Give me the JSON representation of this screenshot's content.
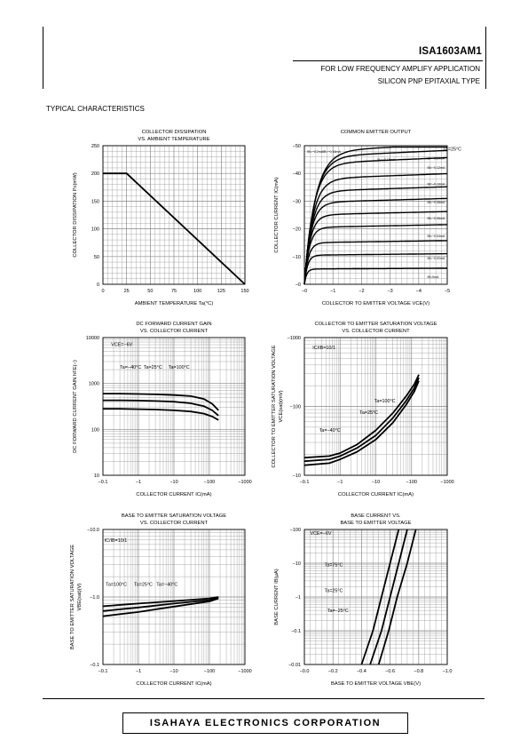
{
  "header": {
    "part_number": "ISA1603AM1",
    "application": "FOR LOW FREQUENCY AMPLIFY APPLICATION",
    "type": "SILICON PNP EPITAXIAL TYPE",
    "section": "TYPICAL CHARACTERISTICS"
  },
  "footer": {
    "company": "ISAHAYA ELECTRONICS CORPORATION"
  },
  "chart_data": [
    {
      "id": "c1",
      "type": "line",
      "title": [
        "COLLECTOR DISSIPATION",
        "VS. AMBIENT TEMPERATURE"
      ],
      "xlabel": "AMBIENT TEMPERATURE Ta(°C)",
      "ylabel": "COLLECTOR DISSIPATION Pc(mW)",
      "xticks": [
        "0",
        "25",
        "50",
        "75",
        "100",
        "125",
        "150"
      ],
      "yticks": [
        "0",
        "50",
        "100",
        "150",
        "200",
        "250"
      ],
      "xlim": [
        0,
        150
      ],
      "ylim": [
        0,
        250
      ],
      "series": [
        {
          "values": [
            [
              0,
              200
            ],
            [
              25,
              200
            ],
            [
              150,
              0
            ]
          ]
        }
      ],
      "annotations": []
    },
    {
      "id": "c2",
      "type": "line",
      "title": [
        "COMMON EMITTER OUTPUT"
      ],
      "xlabel": "COLLECTOR TO EMITTER VOLTAGE VCE(V)",
      "ylabel": "COLLECTOR CURRENT IC(mA)",
      "xticks": [
        "−0",
        "−1",
        "−2",
        "−3",
        "−4",
        "−5"
      ],
      "yticks": [
        "−0",
        "−10",
        "−20",
        "−30",
        "−40",
        "−50"
      ],
      "xlim": [
        0,
        5
      ],
      "ylim": [
        0,
        50
      ],
      "sat_levels": [
        5.5,
        10.5,
        15,
        20.5,
        25,
        29.5,
        33.5,
        38,
        43.5,
        46,
        48
      ],
      "annotations": [
        {
          "text": "Ta=25°C",
          "x": 4.85,
          "y": 48.2
        },
        {
          "text": "IB=−0.2mA",
          "x": 0.1,
          "y": 47.5
        },
        {
          "text": "IB=−0.16mA",
          "x": 0.65,
          "y": 47.5
        },
        {
          "text": "IB=−0.15mA",
          "x": 2.55,
          "y": 44.5
        },
        {
          "text": "IB=−0.14mA",
          "x": 4.3,
          "y": 45.1
        },
        {
          "text": "IB=−0.12mA",
          "x": 4.3,
          "y": 41.6
        },
        {
          "text": "IB=−0.10mA",
          "x": 4.3,
          "y": 35.8
        },
        {
          "text": "IB=−0.08mA",
          "x": 4.3,
          "y": 29.2
        },
        {
          "text": "IB=−0.06mA",
          "x": 4.3,
          "y": 23.4
        },
        {
          "text": "IB=−0.04mA",
          "x": 4.3,
          "y": 17.0
        },
        {
          "text": "IB=−0.02mA",
          "x": 4.3,
          "y": 9.0
        },
        {
          "text": "IB=0mA",
          "x": 4.3,
          "y": 2.2
        }
      ]
    },
    {
      "id": "c3",
      "type": "line",
      "title": [
        "DC FORWARD CURRENT GAIN",
        "VS. COLLECTOR CURRENT"
      ],
      "xlabel": "COLLECTOR CURRENT IC(mA)",
      "ylabel": "DC FORWARD CURRENT GAIN hFE(−)",
      "xticks": [
        "−0.1",
        "−1",
        "−10",
        "−100",
        "−1000"
      ],
      "yticks": [
        "10",
        "100",
        "1000",
        "10000"
      ],
      "xlim": [
        0.1,
        1000
      ],
      "ylim": [
        10,
        10000
      ],
      "xlog": true,
      "ylog": true,
      "series": [
        {
          "values": [
            [
              0.1,
              600
            ],
            [
              0.3,
              600
            ],
            [
              1,
              590
            ],
            [
              3,
              580
            ],
            [
              10,
              560
            ],
            [
              30,
              530
            ],
            [
              70,
              460
            ],
            [
              120,
              360
            ],
            [
              180,
              260
            ]
          ]
        },
        {
          "values": [
            [
              0.1,
              430
            ],
            [
              0.3,
              430
            ],
            [
              1,
              425
            ],
            [
              3,
              415
            ],
            [
              10,
              400
            ],
            [
              30,
              370
            ],
            [
              70,
              320
            ],
            [
              120,
              260
            ],
            [
              180,
              200
            ]
          ]
        },
        {
          "values": [
            [
              0.1,
              280
            ],
            [
              0.3,
              280
            ],
            [
              1,
              275
            ],
            [
              3,
              270
            ],
            [
              10,
              260
            ],
            [
              30,
              245
            ],
            [
              70,
              220
            ],
            [
              120,
              190
            ],
            [
              180,
              160
            ]
          ]
        }
      ],
      "annotations": [
        {
          "text": "VCE=−6V",
          "x": 0.17,
          "y": 6500
        },
        {
          "text": "Ta=−40°C",
          "x": 0.3,
          "y": 2100
        },
        {
          "text": "Ta=25°C",
          "x": 1.4,
          "y": 2100
        },
        {
          "text": "Ta=100°C",
          "x": 7,
          "y": 2100
        }
      ]
    },
    {
      "id": "c4",
      "type": "line",
      "title": [
        "COLLECTOR TO EMITTER SATURATION VOLTAGE",
        "VS. COLLECTOR CURRENT"
      ],
      "xlabel": "COLLECTOR CURRENT IC(mA)",
      "ylabel": [
        "COLLECTOR TO EMITTER SATURATION VOLTAGE",
        "VCE(sat)(mV)"
      ],
      "xticks": [
        "−0.1",
        "−1",
        "−10",
        "−100",
        "−1000"
      ],
      "yticks": [
        "−10",
        "−100",
        "−1000"
      ],
      "xlim": [
        0.1,
        1000
      ],
      "ylim": [
        10,
        1000
      ],
      "xlog": true,
      "ylog": true,
      "series": [
        {
          "values": [
            [
              0.1,
              18
            ],
            [
              0.5,
              19
            ],
            [
              1,
              21
            ],
            [
              3,
              28
            ],
            [
              10,
              45
            ],
            [
              30,
              80
            ],
            [
              70,
              140
            ],
            [
              120,
              210
            ],
            [
              160,
              290
            ]
          ]
        },
        {
          "values": [
            [
              0.1,
              16
            ],
            [
              0.5,
              17
            ],
            [
              1,
              19
            ],
            [
              3,
              25
            ],
            [
              10,
              38
            ],
            [
              30,
              68
            ],
            [
              70,
              120
            ],
            [
              120,
              185
            ],
            [
              160,
              260
            ]
          ]
        },
        {
          "values": [
            [
              0.1,
              14
            ],
            [
              0.5,
              15
            ],
            [
              1,
              17
            ],
            [
              3,
              22
            ],
            [
              10,
              33
            ],
            [
              30,
              58
            ],
            [
              70,
              105
            ],
            [
              120,
              165
            ],
            [
              160,
              235
            ]
          ]
        }
      ],
      "annotations": [
        {
          "text": "IC/IB=10/1",
          "x": 0.17,
          "y": 680
        },
        {
          "text": "Ta=100°C",
          "x": 9,
          "y": 115
        },
        {
          "text": "Ta=25°C",
          "x": 3.5,
          "y": 78
        },
        {
          "text": "Ta=−40°C",
          "x": 0.26,
          "y": 43
        }
      ]
    },
    {
      "id": "c5",
      "type": "line",
      "title": [
        "BASE TO EMITTER SATURATION VOLTAGE",
        "VS. COLLECTOR CURRENT"
      ],
      "xlabel": "COLLECTOR CURRENT IC(mA)",
      "ylabel": [
        "BASE TO EMITTER SATURATION VOLTAGE",
        "VBE(sat)(V)"
      ],
      "xticks": [
        "−0.1",
        "−1",
        "−10",
        "−100",
        "−1000"
      ],
      "yticks": [
        "−0.1",
        "−1.0",
        "−10.0"
      ],
      "xlim": [
        0.1,
        1000
      ],
      "ylim": [
        0.1,
        10
      ],
      "xlog": true,
      "ylog": true,
      "series": [
        {
          "values": [
            [
              0.1,
              0.73
            ],
            [
              1,
              0.8
            ],
            [
              10,
              0.87
            ],
            [
              100,
              0.95
            ],
            [
              180,
              1.0
            ]
          ]
        },
        {
          "values": [
            [
              0.1,
              0.62
            ],
            [
              1,
              0.7
            ],
            [
              10,
              0.8
            ],
            [
              100,
              0.9
            ],
            [
              180,
              0.97
            ]
          ]
        },
        {
          "values": [
            [
              0.1,
              0.52
            ],
            [
              1,
              0.6
            ],
            [
              10,
              0.72
            ],
            [
              100,
              0.86
            ],
            [
              180,
              0.95
            ]
          ]
        }
      ],
      "annotations": [
        {
          "text": "IC/IB=10/1",
          "x": 0.11,
          "y": 6.5
        },
        {
          "text": "Ta=100°C",
          "x": 0.12,
          "y": 1.45
        },
        {
          "text": "Ta=25°C",
          "x": 0.75,
          "y": 1.45
        },
        {
          "text": "Ta=−40°C",
          "x": 3.2,
          "y": 1.45
        }
      ]
    },
    {
      "id": "c6",
      "type": "line",
      "title": [
        "BASE CURRENT VS.",
        "BASE TO EMITTER VOLTAGE"
      ],
      "xlabel": "BASE TO EMITTER VOLTAGE VBE(V)",
      "ylabel": "BASE CURRENT IB(μA)",
      "xticks": [
        "−0.0",
        "−0.2",
        "−0.4",
        "−0.6",
        "−0.8",
        "−1.0"
      ],
      "yticks": [
        "−0.01",
        "−0.1",
        "−1",
        "−10",
        "−100"
      ],
      "xlim": [
        0,
        1
      ],
      "ylim": [
        0.01,
        100
      ],
      "ylog": true,
      "series": [
        {
          "values": [
            [
              0.4,
              0.01
            ],
            [
              0.48,
              0.1
            ],
            [
              0.54,
              1
            ],
            [
              0.6,
              10
            ],
            [
              0.66,
              100
            ]
          ]
        },
        {
          "values": [
            [
              0.46,
              0.01
            ],
            [
              0.54,
              0.1
            ],
            [
              0.6,
              1
            ],
            [
              0.66,
              10
            ],
            [
              0.72,
              100
            ]
          ]
        },
        {
          "values": [
            [
              0.52,
              0.01
            ],
            [
              0.59,
              0.1
            ],
            [
              0.65,
              1
            ],
            [
              0.72,
              10
            ],
            [
              0.78,
              100
            ]
          ]
        }
      ],
      "annotations": [
        {
          "text": "VCE=−6V",
          "x": 0.04,
          "y": 70
        },
        {
          "text": "Ta=75°C",
          "x": 0.14,
          "y": 8
        },
        {
          "text": "Ta=25°C",
          "x": 0.14,
          "y": 1.4
        },
        {
          "text": "Ta=−25°C",
          "x": 0.16,
          "y": 0.36
        }
      ]
    }
  ]
}
